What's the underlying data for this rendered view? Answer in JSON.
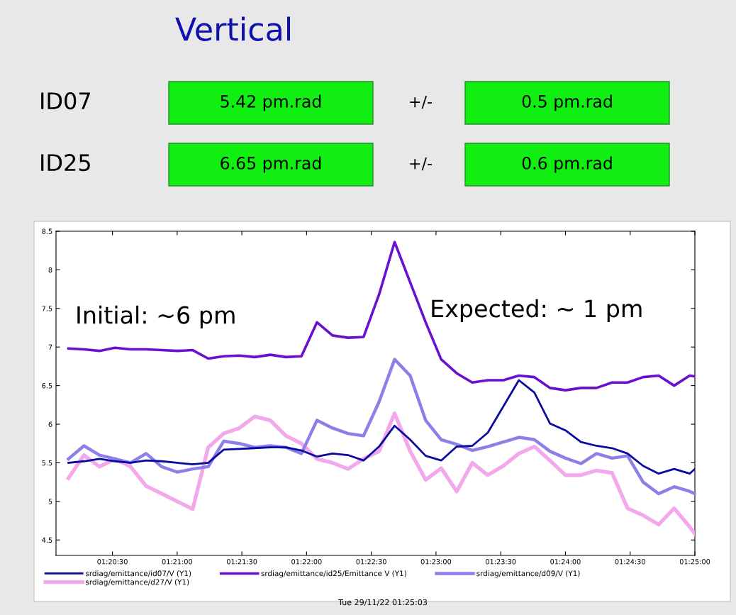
{
  "chart_data": [
    {
      "type": "other",
      "title": "Vertical",
      "annotations": [
        "ID07",
        "5.42 pm.rad",
        "+/-",
        "0.5 pm.rad",
        "ID25",
        "6.65 pm.rad",
        "+/-",
        "0.6 pm.rad"
      ]
    },
    {
      "type": "line",
      "x": [
        1.336,
        1.338,
        1.34,
        1.342,
        1.344,
        1.346,
        1.348,
        1.35,
        1.352,
        1.354,
        1.356,
        1.358,
        1.36,
        1.362,
        1.364,
        1.366,
        1.368,
        1.37,
        1.372,
        1.374,
        1.376,
        1.378,
        1.38,
        1.382,
        1.384,
        1.386,
        1.388,
        1.39,
        1.392,
        1.394,
        1.396,
        1.398,
        1.4,
        1.402,
        1.404,
        1.406,
        1.408,
        1.41,
        1.412,
        1.414,
        1.416,
        1.416667
      ],
      "series": [
        {
          "name": "srdiag/emittance/id07/V (Y1)",
          "color": "#0a0aa0",
          "values": [
            5.5,
            5.52,
            5.55,
            5.52,
            5.5,
            5.53,
            5.52,
            5.5,
            5.48,
            5.5,
            5.67,
            5.68,
            5.69,
            5.7,
            5.7,
            5.66,
            5.58,
            5.62,
            5.6,
            5.53,
            5.71,
            5.98,
            5.8,
            5.59,
            5.53,
            5.71,
            5.72,
            5.89,
            6.23,
            6.57,
            6.41,
            6.01,
            5.92,
            5.77,
            5.72,
            5.69,
            5.62,
            5.46,
            5.36,
            5.42,
            5.36,
            5.42
          ]
        },
        {
          "name": "srdiag/emittance/id25/Emittance V (Y1)",
          "color": "#6a10d0",
          "values": [
            6.98,
            6.97,
            6.95,
            6.99,
            6.97,
            6.97,
            6.96,
            6.95,
            6.96,
            6.85,
            6.88,
            6.89,
            6.87,
            6.9,
            6.87,
            6.88,
            7.32,
            7.15,
            7.12,
            7.13,
            7.68,
            8.36,
            7.84,
            7.32,
            6.84,
            6.66,
            6.54,
            6.57,
            6.57,
            6.63,
            6.61,
            6.47,
            6.44,
            6.47,
            6.47,
            6.54,
            6.54,
            6.61,
            6.63,
            6.5,
            6.63,
            6.62
          ]
        },
        {
          "name": "srdiag/emittance/d09/V (Y1)",
          "color": "#8c80e8",
          "values": [
            5.55,
            5.72,
            5.6,
            5.55,
            5.5,
            5.62,
            5.45,
            5.38,
            5.42,
            5.45,
            5.78,
            5.75,
            5.7,
            5.72,
            5.7,
            5.62,
            6.05,
            5.95,
            5.88,
            5.85,
            6.29,
            6.84,
            6.63,
            6.05,
            5.8,
            5.74,
            5.66,
            5.71,
            5.77,
            5.83,
            5.8,
            5.65,
            5.56,
            5.49,
            5.62,
            5.56,
            5.59,
            5.25,
            5.1,
            5.19,
            5.13,
            5.1
          ]
        },
        {
          "name": "srdiag/emittance/d27/V (Y1)",
          "color": "#f4a8ec",
          "values": [
            5.3,
            5.6,
            5.45,
            5.55,
            5.45,
            5.2,
            5.1,
            5.0,
            4.9,
            5.7,
            5.88,
            5.95,
            6.1,
            6.05,
            5.85,
            5.75,
            5.55,
            5.5,
            5.42,
            5.55,
            5.65,
            6.14,
            5.65,
            5.28,
            5.43,
            5.13,
            5.5,
            5.34,
            5.46,
            5.62,
            5.71,
            5.53,
            5.34,
            5.34,
            5.4,
            5.37,
            4.91,
            4.82,
            4.7,
            4.91,
            4.67,
            4.58
          ]
        }
      ],
      "xlim": [
        1.3344,
        1.416667
      ],
      "xticks": [
        {
          "value": 1.341667,
          "label": "01:20:30"
        },
        {
          "value": 1.35,
          "label": "01:21:00"
        },
        {
          "value": 1.358333,
          "label": "01:21:30"
        },
        {
          "value": 1.366667,
          "label": "01:22:00"
        },
        {
          "value": 1.375,
          "label": "01:22:30"
        },
        {
          "value": 1.383333,
          "label": "01:23:00"
        },
        {
          "value": 1.391667,
          "label": "01:23:30"
        },
        {
          "value": 1.4,
          "label": "01:24:00"
        },
        {
          "value": 1.408333,
          "label": "01:24:30"
        },
        {
          "value": 1.416667,
          "label": "01:25:00"
        }
      ],
      "ylim": [
        4.3,
        8.5
      ],
      "yticks": [
        4.5,
        5,
        5.5,
        6,
        6.5,
        7,
        7.5,
        8,
        8.5
      ],
      "annotations": [
        "Initial: ~6 pm",
        "Expected: ~ 1 pm",
        "Tue 29/11/22 01:25:03"
      ],
      "legend": "bottom",
      "grid": false,
      "marker": "none",
      "line_style": "solid"
    }
  ]
}
